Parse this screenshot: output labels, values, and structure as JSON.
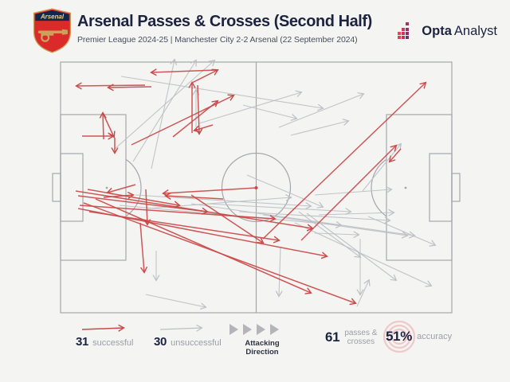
{
  "header": {
    "crest_label": "Arsenal",
    "title": "Arsenal Passes & Crosses (Second Half)",
    "subtitle": "Premier League 2024-25 | Manchester City 2-2 Arsenal (22 September 2024)",
    "brand_bold": "Opta",
    "brand_regular": "Analyst"
  },
  "legend": {
    "successful_count": "31",
    "successful_label": "successful",
    "unsuccessful_count": "30",
    "unsuccessful_label": "unsuccessful",
    "attacking_direction_label": "Attacking Direction",
    "total_count": "61",
    "total_label_line1": "passes &",
    "total_label_line2": "crosses",
    "accuracy_value": "51%",
    "accuracy_label": "accuracy"
  },
  "colors": {
    "background": "#f4f4f2",
    "successful": "#c94949",
    "unsuccessful": "#bcbfc4",
    "pitch_line": "#a3a7ac",
    "navy_text": "#1c2340",
    "muted_label": "#9b9ea8",
    "opta_pink": "#cc3a60",
    "accuracy_ring": "#eec9c8"
  },
  "chart_data": {
    "type": "scatter",
    "subtype": "pass_map",
    "title": "Arsenal Passes & Crosses (Second Half)",
    "pitch": {
      "orientation": "horizontal",
      "attacking_direction": "left-to-right",
      "coord_space": [
        640,
        340
      ],
      "pitch_rect": [
        76,
        8,
        491,
        315
      ]
    },
    "stats": {
      "successful": 31,
      "unsuccessful": 30,
      "total_passes_and_crosses": 61,
      "accuracy_pct": 51
    },
    "series": [
      {
        "name": "successful",
        "color": "#c94949",
        "segments": [
          [
            272,
            18,
            190,
            21
          ],
          [
            241,
            34,
            273,
            18
          ],
          [
            182,
            37,
            96,
            38
          ],
          [
            190,
            39,
            136,
            40
          ],
          [
            241,
            97,
            241,
            34
          ],
          [
            248,
            37,
            250,
            98
          ],
          [
            130,
            105,
            129,
            72
          ],
          [
            129,
            72,
            143,
            102
          ],
          [
            103,
            101,
            142,
            101
          ],
          [
            144,
            103,
            144,
            122
          ],
          [
            165,
            112,
            293,
            50
          ],
          [
            217,
            102,
            273,
            57
          ],
          [
            267,
            87,
            244,
            94
          ],
          [
            322,
            166,
            205,
            173
          ],
          [
            280,
            180,
            208,
            176
          ],
          [
            170,
            162,
            135,
            172
          ],
          [
            95,
            170,
            392,
            217
          ],
          [
            98,
            192,
            410,
            252
          ],
          [
            105,
            185,
            446,
            311
          ],
          [
            120,
            180,
            390,
            298
          ],
          [
            112,
            196,
            350,
            232
          ],
          [
            330,
            230,
            534,
            34
          ],
          [
            378,
            232,
            497,
            113
          ],
          [
            503,
            117,
            489,
            133
          ],
          [
            183,
            168,
            185,
            212
          ],
          [
            176,
            210,
            181,
            272
          ],
          [
            130,
            178,
            167,
            175
          ],
          [
            100,
            188,
            345,
            205
          ],
          [
            240,
            175,
            330,
            235
          ],
          [
            98,
            176,
            260,
            196
          ],
          [
            110,
            168,
            225,
            188
          ]
        ]
      },
      {
        "name": "unsuccessful",
        "color": "#bcbfc4",
        "segments": [
          [
            190,
            142,
            219,
            5
          ],
          [
            167,
            133,
            246,
            6
          ],
          [
            143,
            118,
            269,
            6
          ],
          [
            152,
            26,
            405,
            66
          ],
          [
            250,
            85,
            378,
            46
          ],
          [
            305,
            62,
            372,
            79
          ],
          [
            350,
            90,
            456,
            48
          ],
          [
            365,
            100,
            437,
            82
          ],
          [
            395,
            223,
            450,
            225
          ],
          [
            385,
            198,
            497,
            282
          ],
          [
            370,
            210,
            541,
            289
          ],
          [
            448,
            315,
            463,
            282
          ],
          [
            452,
            230,
            452,
            300
          ],
          [
            352,
            240,
            350,
            302
          ],
          [
            455,
            170,
            503,
            111
          ],
          [
            395,
            175,
            491,
            168
          ],
          [
            400,
            200,
            494,
            197
          ],
          [
            183,
            300,
            258,
            316
          ],
          [
            150,
            188,
            428,
            213
          ],
          [
            240,
            186,
            520,
            226
          ],
          [
            300,
            196,
            489,
            207
          ],
          [
            330,
            200,
            511,
            226
          ],
          [
            246,
            90,
            246,
            43
          ],
          [
            196,
            245,
            196,
            282
          ],
          [
            170,
            175,
            390,
            189
          ],
          [
            185,
            192,
            365,
            178
          ],
          [
            260,
            186,
            440,
            196
          ],
          [
            310,
            150,
            405,
            190
          ],
          [
            375,
            196,
            452,
            253
          ],
          [
            462,
            202,
            546,
            238
          ]
        ]
      }
    ]
  }
}
